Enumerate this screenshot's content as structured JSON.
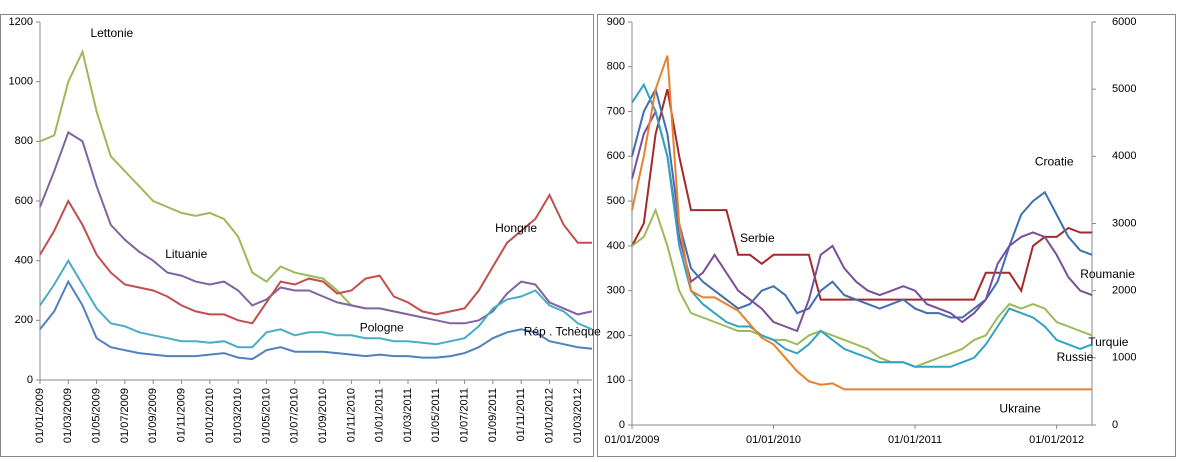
{
  "chart_data": [
    {
      "type": "line",
      "x": [
        "01/01/2009",
        "01/02/2009",
        "01/03/2009",
        "01/04/2009",
        "01/05/2009",
        "01/06/2009",
        "01/07/2009",
        "01/08/2009",
        "01/09/2009",
        "01/10/2009",
        "01/11/2009",
        "01/12/2009",
        "01/01/2010",
        "01/02/2010",
        "01/03/2010",
        "01/04/2010",
        "01/05/2010",
        "01/06/2010",
        "01/07/2010",
        "01/08/2010",
        "01/09/2010",
        "01/10/2010",
        "01/11/2010",
        "01/12/2010",
        "01/01/2011",
        "01/02/2011",
        "01/03/2011",
        "01/04/2011",
        "01/05/2011",
        "01/06/2011",
        "01/07/2011",
        "01/08/2011",
        "01/09/2011",
        "01/10/2011",
        "01/11/2011",
        "01/12/2011",
        "01/01/2012",
        "01/02/2012",
        "01/03/2012",
        "01/04/2012"
      ],
      "xlim": [
        "01/01/2009",
        "01/04/2012"
      ],
      "xticks": [
        "01/01/2009",
        "01/03/2009",
        "01/05/2009",
        "01/07/2009",
        "01/09/2009",
        "01/11/2009",
        "01/01/2010",
        "01/03/2010",
        "01/05/2010",
        "01/07/2010",
        "01/09/2010",
        "01/11/2010",
        "01/01/2011",
        "01/03/2011",
        "01/05/2011",
        "01/07/2011",
        "01/09/2011",
        "01/11/2011",
        "01/01/2012",
        "01/03/2012"
      ],
      "ylim": [
        0,
        1200
      ],
      "yticks": [
        0,
        200,
        400,
        600,
        800,
        1000,
        1200
      ],
      "series": [
        {
          "name": "Lettonie",
          "color": "#9bbb59",
          "values": [
            800,
            820,
            1000,
            1100,
            900,
            750,
            700,
            650,
            600,
            580,
            560,
            550,
            560,
            540,
            480,
            360,
            330,
            380,
            360,
            350,
            340,
            300,
            250,
            240,
            null,
            null,
            null,
            null,
            null,
            null,
            null,
            null,
            null,
            null,
            null,
            null,
            null,
            null,
            null,
            null
          ]
        },
        {
          "name": "Lituanie",
          "color": "#8064a2",
          "values": [
            580,
            700,
            830,
            800,
            650,
            520,
            470,
            430,
            400,
            360,
            350,
            330,
            320,
            330,
            300,
            250,
            270,
            310,
            300,
            300,
            280,
            260,
            250,
            240,
            240,
            230,
            220,
            210,
            200,
            190,
            190,
            200,
            230,
            290,
            330,
            320,
            260,
            240,
            220,
            230
          ]
        },
        {
          "name": "Hongrie",
          "color": "#c0504d",
          "values": [
            420,
            500,
            600,
            520,
            420,
            360,
            320,
            310,
            300,
            280,
            250,
            230,
            220,
            220,
            200,
            190,
            260,
            330,
            320,
            340,
            330,
            290,
            300,
            340,
            350,
            280,
            260,
            230,
            220,
            230,
            240,
            300,
            380,
            460,
            500,
            540,
            620,
            520,
            460,
            460
          ]
        },
        {
          "name": "Pologne",
          "color": "#4bacc6",
          "values": [
            250,
            320,
            400,
            320,
            240,
            190,
            180,
            160,
            150,
            140,
            130,
            130,
            125,
            130,
            110,
            110,
            160,
            170,
            150,
            160,
            160,
            150,
            150,
            140,
            140,
            130,
            130,
            125,
            120,
            130,
            140,
            180,
            240,
            270,
            280,
            300,
            250,
            230,
            190,
            170
          ]
        },
        {
          "name": "Rép . Tchèque",
          "color": "#4f81bd",
          "values": [
            170,
            230,
            330,
            250,
            140,
            110,
            100,
            90,
            85,
            80,
            80,
            80,
            85,
            90,
            75,
            70,
            100,
            110,
            95,
            95,
            95,
            90,
            85,
            80,
            85,
            80,
            80,
            75,
            75,
            80,
            90,
            110,
            140,
            160,
            170,
            160,
            130,
            120,
            110,
            105
          ]
        }
      ]
    },
    {
      "type": "line",
      "x": [
        "01/01/2009",
        "01/02/2009",
        "01/03/2009",
        "01/04/2009",
        "01/05/2009",
        "01/06/2009",
        "01/07/2009",
        "01/08/2009",
        "01/09/2009",
        "01/10/2009",
        "01/11/2009",
        "01/12/2009",
        "01/01/2010",
        "01/02/2010",
        "01/03/2010",
        "01/04/2010",
        "01/05/2010",
        "01/06/2010",
        "01/07/2010",
        "01/08/2010",
        "01/09/2010",
        "01/10/2010",
        "01/11/2010",
        "01/12/2010",
        "01/01/2011",
        "01/02/2011",
        "01/03/2011",
        "01/04/2011",
        "01/05/2011",
        "01/06/2011",
        "01/07/2011",
        "01/08/2011",
        "01/09/2011",
        "01/10/2011",
        "01/11/2011",
        "01/12/2011",
        "01/01/2012",
        "01/02/2012",
        "01/03/2012",
        "01/04/2012"
      ],
      "xlim": [
        "01/01/2009",
        "01/04/2012"
      ],
      "xticks": [
        "01/01/2009",
        "01/01/2010",
        "01/01/2011",
        "01/01/2012"
      ],
      "ylim": [
        0,
        900
      ],
      "yticks": [
        0,
        100,
        200,
        300,
        400,
        500,
        600,
        700,
        800,
        900
      ],
      "y2lim": [
        0,
        6000
      ],
      "y2ticks": [
        0,
        1000,
        2000,
        3000,
        4000,
        5000,
        6000
      ],
      "series": [
        {
          "name": "Serbie",
          "color": "#a5292a",
          "values": [
            400,
            450,
            650,
            750,
            600,
            480,
            480,
            480,
            480,
            380,
            380,
            360,
            380,
            380,
            380,
            380,
            280,
            280,
            280,
            280,
            280,
            280,
            280,
            280,
            280,
            280,
            280,
            280,
            280,
            280,
            340,
            340,
            340,
            300,
            400,
            420,
            420,
            440,
            430,
            430
          ]
        },
        {
          "name": "Croatie",
          "color": "#3f6fb0",
          "values": [
            600,
            700,
            750,
            650,
            450,
            350,
            320,
            300,
            280,
            260,
            270,
            300,
            310,
            290,
            250,
            260,
            300,
            320,
            290,
            280,
            270,
            260,
            270,
            280,
            260,
            250,
            250,
            240,
            240,
            260,
            280,
            320,
            400,
            470,
            500,
            520,
            470,
            420,
            390,
            380
          ]
        },
        {
          "name": "Roumanie",
          "color": "#7a4f9a",
          "values": [
            550,
            650,
            700,
            600,
            420,
            320,
            340,
            380,
            340,
            300,
            280,
            260,
            230,
            220,
            210,
            280,
            380,
            400,
            350,
            320,
            300,
            290,
            300,
            310,
            300,
            270,
            260,
            250,
            230,
            250,
            280,
            360,
            400,
            420,
            430,
            420,
            380,
            330,
            300,
            290
          ]
        },
        {
          "name": "Turquie",
          "color": "#9bbb59",
          "values": [
            400,
            420,
            480,
            400,
            300,
            250,
            240,
            230,
            220,
            210,
            210,
            200,
            190,
            190,
            180,
            200,
            210,
            200,
            190,
            180,
            170,
            150,
            140,
            140,
            130,
            140,
            150,
            160,
            170,
            190,
            200,
            240,
            270,
            260,
            270,
            260,
            230,
            220,
            210,
            200
          ]
        },
        {
          "name": "Russie",
          "color": "#31a3c0",
          "values": [
            720,
            760,
            700,
            600,
            400,
            300,
            270,
            250,
            230,
            220,
            220,
            200,
            190,
            170,
            160,
            180,
            210,
            190,
            170,
            160,
            150,
            140,
            140,
            140,
            130,
            130,
            130,
            130,
            140,
            150,
            180,
            220,
            260,
            250,
            240,
            220,
            190,
            180,
            170,
            180
          ]
        },
        {
          "name": "Ukraine",
          "color": "#e8812f",
          "axis": "y2",
          "values": [
            3200,
            4000,
            5000,
            5500,
            3000,
            2000,
            1900,
            1900,
            1800,
            1700,
            1500,
            1300,
            1200,
            1000,
            800,
            650,
            600,
            620,
            530,
            530,
            530,
            530,
            530,
            530,
            530,
            530,
            530,
            530,
            530,
            530,
            530,
            530,
            530,
            530,
            530,
            530,
            530,
            530,
            530,
            530
          ]
        }
      ]
    }
  ]
}
